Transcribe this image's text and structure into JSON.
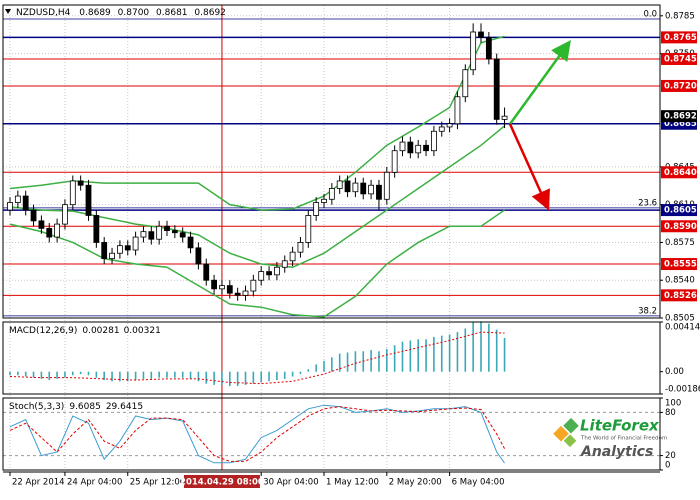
{
  "chart_data": {
    "type": "candlestick",
    "title": "NZDUSD,H4",
    "last_bar_labels": [
      "0.8689",
      "0.8700",
      "0.8681",
      "0.8692"
    ],
    "categories": [
      "22 Apr 2014",
      null,
      null,
      null,
      null,
      null,
      null,
      "24 Apr 04:00",
      null,
      null,
      null,
      null,
      null,
      null,
      null,
      "25 Apr 12:00",
      null,
      null,
      null,
      null,
      null,
      null,
      null,
      null,
      null,
      null,
      null,
      "2014.04.29 08:00",
      null,
      null,
      null,
      null,
      "30 Apr 04:00",
      null,
      null,
      null,
      null,
      null,
      null,
      null,
      "1 May 12:00",
      null,
      null,
      null,
      null,
      null,
      null,
      null,
      "2 May 20:00",
      null,
      null,
      null,
      null,
      null,
      null,
      null,
      "6 May 04:00",
      null,
      null,
      null,
      null,
      null,
      null,
      null
    ],
    "highlight_category": 27,
    "open": [
      0.8605,
      0.8612,
      0.8618,
      0.8605,
      0.8595,
      0.8588,
      0.858,
      0.8592,
      0.861,
      0.8632,
      0.8628,
      0.86,
      0.8575,
      0.856,
      0.8565,
      0.8572,
      0.8568,
      0.858,
      0.8585,
      0.8578,
      0.859,
      0.8586,
      0.8584,
      0.858,
      0.857,
      0.8555,
      0.854,
      0.8532,
      0.8535,
      0.8528,
      0.8526,
      0.853,
      0.854,
      0.8548,
      0.8545,
      0.8552,
      0.8558,
      0.8566,
      0.8575,
      0.86,
      0.8612,
      0.8615,
      0.8625,
      0.8632,
      0.8622,
      0.863,
      0.862,
      0.8628,
      0.8615,
      0.864,
      0.866,
      0.8668,
      0.8658,
      0.8665,
      0.866,
      0.8678,
      0.8682,
      0.8685,
      0.871,
      0.8735,
      0.877,
      0.8765,
      0.8745,
      0.8689
    ],
    "high": [
      0.8617,
      0.8623,
      0.8623,
      0.861,
      0.86,
      0.8593,
      0.8597,
      0.8615,
      0.8637,
      0.8637,
      0.8633,
      0.8605,
      0.858,
      0.857,
      0.8577,
      0.8577,
      0.8585,
      0.859,
      0.859,
      0.8595,
      0.8595,
      0.8591,
      0.8589,
      0.8585,
      0.8575,
      0.856,
      0.8545,
      0.854,
      0.854,
      0.8533,
      0.8535,
      0.8545,
      0.8553,
      0.8553,
      0.8557,
      0.8563,
      0.8571,
      0.858,
      0.8605,
      0.8617,
      0.862,
      0.863,
      0.8637,
      0.8637,
      0.8635,
      0.8635,
      0.8633,
      0.8633,
      0.8645,
      0.8665,
      0.8673,
      0.8673,
      0.867,
      0.867,
      0.8683,
      0.8687,
      0.869,
      0.8715,
      0.874,
      0.8778,
      0.8778,
      0.877,
      0.875,
      0.87
    ],
    "low": [
      0.86,
      0.8607,
      0.86,
      0.859,
      0.8583,
      0.8575,
      0.8575,
      0.8587,
      0.8605,
      0.8623,
      0.8595,
      0.857,
      0.8555,
      0.8555,
      0.856,
      0.8563,
      0.8563,
      0.8575,
      0.8573,
      0.8573,
      0.8581,
      0.8579,
      0.8575,
      0.8565,
      0.855,
      0.8535,
      0.8527,
      0.8527,
      0.8523,
      0.8521,
      0.8521,
      0.8525,
      0.8535,
      0.854,
      0.854,
      0.8547,
      0.8553,
      0.8561,
      0.857,
      0.8595,
      0.8607,
      0.861,
      0.862,
      0.8617,
      0.8617,
      0.8615,
      0.8615,
      0.8605,
      0.861,
      0.8635,
      0.8655,
      0.8653,
      0.8653,
      0.8655,
      0.8655,
      0.8673,
      0.8677,
      0.868,
      0.8705,
      0.873,
      0.876,
      0.874,
      0.8684,
      0.8681
    ],
    "close": [
      0.8612,
      0.8618,
      0.8605,
      0.8595,
      0.8588,
      0.858,
      0.8592,
      0.861,
      0.8632,
      0.8628,
      0.86,
      0.8575,
      0.856,
      0.8565,
      0.8572,
      0.8568,
      0.858,
      0.8585,
      0.8578,
      0.859,
      0.8586,
      0.8584,
      0.858,
      0.857,
      0.8555,
      0.854,
      0.8532,
      0.8535,
      0.8528,
      0.8526,
      0.853,
      0.854,
      0.8548,
      0.8545,
      0.8552,
      0.8558,
      0.8566,
      0.8575,
      0.86,
      0.8612,
      0.8615,
      0.8625,
      0.8632,
      0.8622,
      0.863,
      0.862,
      0.8628,
      0.8615,
      0.864,
      0.866,
      0.8668,
      0.8658,
      0.8665,
      0.866,
      0.8678,
      0.8682,
      0.8685,
      0.871,
      0.8735,
      0.877,
      0.8765,
      0.8745,
      0.8689,
      0.8692
    ],
    "ylim": [
      0.8505,
      0.8795
    ],
    "yticks": [
      0.8505,
      {
        "value": 0.854,
        "label": "0.8540"
      },
      0.8575,
      {
        "value": 0.861,
        "label": "0.8610"
      },
      0.8645,
      {
        "value": 0.875,
        "label": "0.8750"
      },
      0.8785
    ],
    "levels": [
      {
        "value": 0.8765,
        "color": "#e00000",
        "line": "#000080"
      },
      {
        "value": 0.8745,
        "color": "#e00000",
        "line": "#e00000"
      },
      {
        "value": 0.872,
        "label": "0.8720",
        "color": "#e00000",
        "line": "#e00000"
      },
      {
        "value": 0.8685,
        "color": "#000080",
        "line": "#000080"
      },
      {
        "value": 0.864,
        "label": "0.8640",
        "color": "#e00000",
        "line": "#e00000"
      },
      {
        "value": 0.8605,
        "color": "#000080",
        "line": "#000080"
      },
      {
        "value": 0.859,
        "label": "0.8590",
        "color": "#e00000",
        "line": "#e00000"
      },
      {
        "value": 0.8555,
        "color": "#e00000",
        "line": "#e00000"
      },
      {
        "value": 0.8526,
        "color": "#e00000",
        "line": "#e00000"
      }
    ],
    "fibo": [
      {
        "price": 0.8782,
        "text": "0.0"
      },
      {
        "price": 0.8607,
        "text": "23.6"
      },
      {
        "price": 0.8507,
        "text": "38.2"
      }
    ],
    "bands": {
      "x": [
        0,
        4,
        8,
        12,
        16,
        20,
        24,
        28,
        32,
        36,
        40,
        44,
        48,
        52,
        56,
        60,
        63
      ],
      "color": "#3cb043",
      "series": [
        {
          "values": [
            0.8625,
            0.8628,
            0.8632,
            0.863,
            0.863,
            0.863,
            0.863,
            0.861,
            0.8605,
            0.8606,
            0.8618,
            0.864,
            0.8665,
            0.8682,
            0.87,
            0.876,
            0.8766
          ]
        },
        {
          "values": [
            0.8608,
            0.8605,
            0.8604,
            0.8598,
            0.8592,
            0.8588,
            0.8582,
            0.8565,
            0.8555,
            0.8552,
            0.8565,
            0.8585,
            0.8605,
            0.8625,
            0.8645,
            0.8665,
            0.8683
          ]
        },
        {
          "values": [
            0.8592,
            0.8585,
            0.8575,
            0.856,
            0.8555,
            0.8552,
            0.8535,
            0.8518,
            0.8515,
            0.8508,
            0.8506,
            0.8525,
            0.8555,
            0.8575,
            0.859,
            0.859,
            0.8605
          ]
        }
      ]
    },
    "indicators": [
      {
        "type": "macd",
        "title": "MACD(12,26,9)",
        "values": [
          -0.0003,
          -0.0003,
          -0.0004,
          -0.0005,
          -0.0006,
          -0.0007,
          -0.0006,
          -0.0005,
          -0.0003,
          -0.0002,
          -0.0003,
          -0.0005,
          -0.0007,
          -0.0008,
          -0.0008,
          -0.0008,
          -0.0007,
          -0.0006,
          -0.0006,
          -0.0005,
          -0.0005,
          -0.0005,
          -0.0005,
          -0.0006,
          -0.0008,
          -0.001,
          -0.0011,
          -0.0011,
          -0.0012,
          -0.0012,
          -0.0011,
          -0.001,
          -0.0009,
          -0.0008,
          -0.0007,
          -0.0006,
          -0.0004,
          -0.0002,
          0.0002,
          0.0006,
          0.0009,
          0.0012,
          0.0015,
          0.0016,
          0.0017,
          0.0017,
          0.0018,
          0.0017,
          0.0019,
          0.0022,
          0.0025,
          0.0026,
          0.0027,
          0.0027,
          0.0029,
          0.003,
          0.0031,
          0.0033,
          0.0036,
          0.0041,
          0.0042,
          0.004,
          0.0035,
          0.00281
        ],
        "color": "#3aa8b8",
        "signal": {
          "x": [
            0,
            4,
            8,
            12,
            16,
            20,
            24,
            28,
            32,
            36,
            40,
            44,
            48,
            52,
            56,
            60,
            63
          ],
          "values": [
            -0.0004,
            -0.0005,
            -0.0005,
            -0.0006,
            -0.0007,
            -0.0006,
            -0.0006,
            -0.0009,
            -0.001,
            -0.0008,
            -0.0002,
            0.0007,
            0.0014,
            0.002,
            0.0026,
            0.0033,
            0.00321
          ],
          "color": "#e00000"
        },
        "ylim": [
          -0.00186,
          0.00414
        ],
        "yticks": [
          -0.00186,
          {
            "value": 0,
            "label": "0.00"
          },
          0.00414
        ]
      },
      {
        "type": "stoch",
        "title": "Stoch(5,3,3)",
        "x": [
          0,
          2,
          4,
          6,
          8,
          10,
          12,
          14,
          16,
          18,
          20,
          22,
          24,
          26,
          28,
          30,
          32,
          34,
          36,
          38,
          40,
          42,
          44,
          46,
          48,
          50,
          52,
          54,
          56,
          58,
          60,
          62,
          63
        ],
        "series": [
          {
            "color": "#3a9bd0",
            "values": [
              60,
              70,
              20,
              25,
              75,
              65,
              15,
              40,
              75,
              70,
              72,
              68,
              20,
              10,
              10,
              15,
              45,
              55,
              70,
              85,
              90,
              88,
              80,
              82,
              85,
              80,
              82,
              85,
              85,
              88,
              80,
              25,
              9.6085
            ]
          },
          {
            "color": "#e00000",
            "dash": true,
            "values": [
              55,
              65,
              45,
              25,
              50,
              70,
              40,
              30,
              55,
              72,
              72,
              70,
              45,
              20,
              12,
              12,
              25,
              45,
              60,
              75,
              85,
              88,
              85,
              82,
              83,
              82,
              81,
              83,
              85,
              86,
              84,
              50,
              29.6415
            ]
          }
        ],
        "ylim": [
          0,
          100
        ],
        "yticks": [
          0,
          20,
          80,
          100
        ],
        "dashed_ticks": [
          20,
          80
        ]
      }
    ],
    "logo": {
      "name": "LiteForex",
      "tagline": "The World of Financial Freedom",
      "product": "Analytics"
    }
  }
}
